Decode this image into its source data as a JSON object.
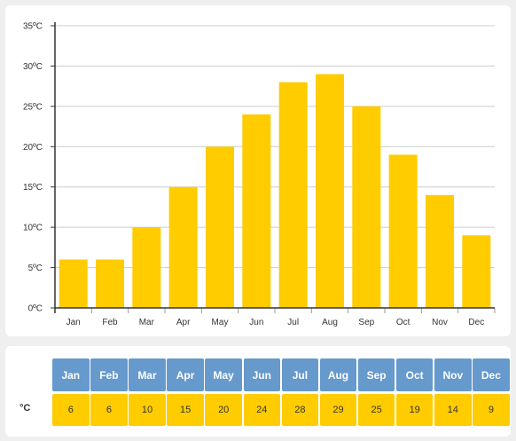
{
  "chart_data": {
    "type": "bar",
    "categories": [
      "Jan",
      "Feb",
      "Mar",
      "Apr",
      "May",
      "Jun",
      "Jul",
      "Aug",
      "Sep",
      "Oct",
      "Nov",
      "Dec"
    ],
    "values": [
      6,
      6,
      10,
      15,
      20,
      24,
      28,
      29,
      25,
      19,
      14,
      9
    ],
    "y_ticks": [
      "0ºC",
      "5ºC",
      "10ºC",
      "15ºC",
      "20ºC",
      "25ºC",
      "30ºC",
      "35ºC"
    ],
    "ylim": [
      0,
      35
    ],
    "grid": true,
    "bar_color": "#ffcc00"
  },
  "table": {
    "unit_label": "°C",
    "headers": [
      "Jan",
      "Feb",
      "Mar",
      "Apr",
      "May",
      "Jun",
      "Jul",
      "Aug",
      "Sep",
      "Oct",
      "Nov",
      "Dec"
    ],
    "values": [
      "6",
      "6",
      "10",
      "15",
      "20",
      "24",
      "28",
      "29",
      "25",
      "19",
      "14",
      "9"
    ],
    "header_color": "#6699cc",
    "value_color": "#ffcc00"
  }
}
